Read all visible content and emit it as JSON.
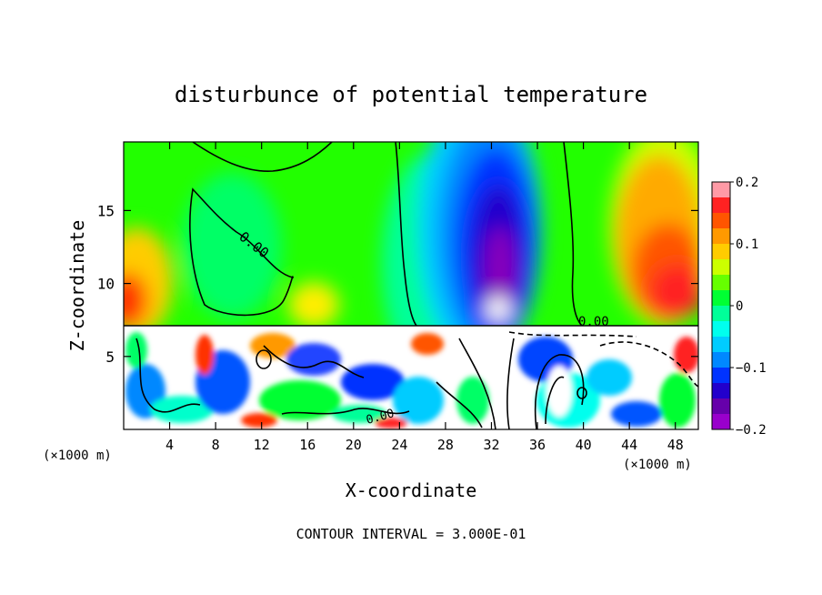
{
  "chart_data": {
    "type": "heatmap",
    "title": "disturbunce of potential temperature",
    "xlabel": "X-coordinate",
    "ylabel": "Z-coordinate",
    "x_unit": "(×1000 m)",
    "x_ticks": [
      4,
      8,
      12,
      16,
      20,
      24,
      28,
      32,
      36,
      40,
      44,
      48
    ],
    "y_ticks": [
      5,
      10,
      15
    ],
    "xlim": [
      0,
      50
    ],
    "ylim": [
      0,
      19.7
    ],
    "colorbar": {
      "ticks": [
        "0.2",
        "0.1",
        "0",
        "−0.1",
        "−0.2"
      ],
      "range": [
        -0.2,
        0.2
      ],
      "colors": [
        "#ff9aa6",
        "#ff2222",
        "#ff5500",
        "#ff9900",
        "#ffcc00",
        "#ccff00",
        "#66ff00",
        "#00ff33",
        "#00ff99",
        "#00ffee",
        "#00ccff",
        "#0088ff",
        "#0033ff",
        "#2200cc",
        "#6600aa",
        "#9900cc"
      ]
    },
    "contour_label": "0.00",
    "footnote": "CONTOUR INTERVAL = 3.000E-01"
  }
}
